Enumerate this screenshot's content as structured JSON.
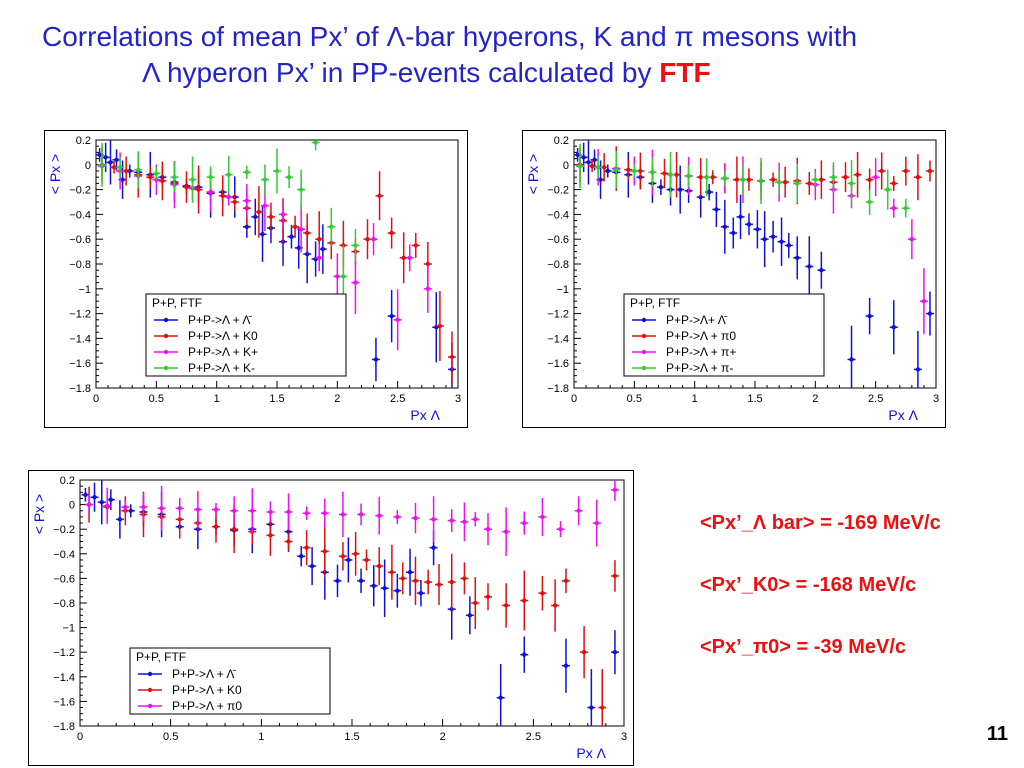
{
  "title": {
    "line1": "Correlations of mean Px’ of Λ-bar hyperons,  K  and π mesons with",
    "line2_prefix": "Λ  hyperon Px’ in PP-events calculated by ",
    "line2_highlight": "FTF"
  },
  "results": [
    "<Px’_Λ bar> = -169 MeV/c",
    "<Px’_K0> = -168 MeV/c",
    "<Px’_π0> = -39 MeV/c"
  ],
  "page_number": "11",
  "colors": {
    "blue": "#1010dd",
    "red": "#e01010",
    "magenta": "#ee10ee",
    "green": "#33cc33",
    "title": "#2323c8"
  },
  "chart_data": [
    {
      "type": "scatter",
      "xlabel": "Px  Λ",
      "ylabel": "< Px >",
      "xlim": [
        0,
        3
      ],
      "ylim": [
        -1.8,
        0.2
      ],
      "xticks": [
        "0",
        "0.5",
        "1",
        "1.5",
        "2",
        "2.5",
        "3"
      ],
      "yticks": [
        "0.2",
        "0",
        "−0.2",
        "−0.4",
        "−0.6",
        "−0.8",
        "−1",
        "−1.2",
        "−1.4",
        "−1.6",
        "−1.8"
      ],
      "legend_header": "P+P, FTF",
      "legend_position": "lower-left",
      "series": [
        {
          "name": "P+P->Λ + Λ̄",
          "color": "blue",
          "x": [
            0.03,
            0.08,
            0.12,
            0.17,
            0.22,
            0.28,
            0.35,
            0.45,
            0.55,
            0.65,
            0.75,
            0.85,
            0.95,
            1.05,
            1.15,
            1.25,
            1.32,
            1.38,
            1.45,
            1.55,
            1.62,
            1.68,
            1.75,
            1.82,
            1.88,
            2.32,
            2.45,
            2.82,
            2.95
          ],
          "y": [
            0.08,
            0.06,
            0.02,
            0.04,
            -0.12,
            -0.05,
            -0.06,
            -0.08,
            -0.1,
            -0.14,
            -0.17,
            -0.18,
            -0.23,
            -0.22,
            -0.26,
            -0.5,
            -0.42,
            -0.56,
            -0.51,
            -0.62,
            -0.58,
            -0.67,
            -0.72,
            -0.76,
            -0.68,
            -1.57,
            -1.22,
            -1.31,
            -1.65
          ]
        },
        {
          "name": "P+P->Λ + K0",
          "color": "red",
          "x": [
            0.05,
            0.15,
            0.25,
            0.35,
            0.45,
            0.55,
            0.65,
            0.75,
            0.85,
            0.95,
            1.05,
            1.15,
            1.25,
            1.35,
            1.45,
            1.55,
            1.65,
            1.75,
            1.85,
            1.95,
            2.05,
            2.15,
            2.25,
            2.35,
            2.45,
            2.55,
            2.65,
            2.75,
            2.85,
            2.95
          ],
          "y": [
            0.0,
            -0.02,
            -0.05,
            -0.08,
            -0.1,
            -0.13,
            -0.15,
            -0.18,
            -0.2,
            -0.22,
            -0.25,
            -0.3,
            -0.35,
            -0.38,
            -0.42,
            -0.45,
            -0.5,
            -0.55,
            -0.6,
            -0.63,
            -0.65,
            -0.7,
            -0.6,
            -0.25,
            -0.55,
            -0.75,
            -0.65,
            -0.8,
            -1.3,
            -1.55
          ]
        },
        {
          "name": "P+P->Λ + K+",
          "color": "magenta",
          "x": [
            0.05,
            0.2,
            0.35,
            0.5,
            0.65,
            0.8,
            0.95,
            1.1,
            1.25,
            1.4,
            1.55,
            1.7,
            1.85,
            2.0,
            2.15,
            2.3,
            2.5,
            2.6,
            2.75,
            2.9
          ],
          "y": [
            -0.01,
            -0.05,
            -0.09,
            -0.12,
            -0.16,
            -0.19,
            -0.22,
            -0.26,
            -0.29,
            -0.33,
            -0.4,
            -0.52,
            -0.75,
            -0.9,
            -0.95,
            -0.6,
            -1.25,
            -0.75,
            -1.0,
            -1.82
          ]
        },
        {
          "name": "P+P->Λ + K-",
          "color": "green",
          "x": [
            0.05,
            0.2,
            0.35,
            0.5,
            0.65,
            0.8,
            0.95,
            1.1,
            1.25,
            1.4,
            1.5,
            1.6,
            1.7,
            1.82,
            1.95,
            2.05,
            2.15
          ],
          "y": [
            0.0,
            -0.02,
            -0.04,
            -0.07,
            -0.1,
            -0.12,
            -0.1,
            -0.08,
            -0.06,
            -0.12,
            -0.05,
            -0.1,
            -0.2,
            0.18,
            -0.5,
            -0.9,
            -0.65
          ]
        }
      ]
    },
    {
      "type": "scatter",
      "xlabel": "Px  Λ",
      "ylabel": "< Px >",
      "xlim": [
        0,
        3
      ],
      "ylim": [
        -1.8,
        0.2
      ],
      "xticks": [
        "0",
        "0.5",
        "1",
        "1.5",
        "2",
        "2.5",
        "3"
      ],
      "yticks": [
        "0.2",
        "0",
        "−0.2",
        "−0.4",
        "−0.6",
        "−0.8",
        "−1",
        "−1.2",
        "−1.4",
        "−1.6",
        "−1.8"
      ],
      "legend_header": "P+P, FTF",
      "legend_position": "lower-left",
      "series": [
        {
          "name": "P+P->Λ+ Λ̄",
          "color": "blue",
          "x": [
            0.03,
            0.08,
            0.12,
            0.17,
            0.22,
            0.28,
            0.35,
            0.45,
            0.55,
            0.65,
            0.72,
            0.8,
            0.88,
            0.95,
            1.05,
            1.12,
            1.18,
            1.25,
            1.32,
            1.38,
            1.45,
            1.52,
            1.58,
            1.65,
            1.72,
            1.78,
            1.85,
            1.95,
            2.05,
            2.3,
            2.45,
            2.65,
            2.85,
            2.95
          ],
          "y": [
            0.08,
            0.06,
            0.02,
            0.04,
            -0.12,
            -0.05,
            -0.06,
            -0.08,
            -0.1,
            -0.15,
            -0.18,
            -0.2,
            -0.2,
            -0.21,
            -0.26,
            -0.22,
            -0.36,
            -0.5,
            -0.55,
            -0.42,
            -0.48,
            -0.52,
            -0.6,
            -0.58,
            -0.62,
            -0.65,
            -0.75,
            -0.82,
            -0.85,
            -1.57,
            -1.22,
            -1.31,
            -1.65,
            -1.2
          ]
        },
        {
          "name": "P+P->Λ + π0",
          "color": "red",
          "x": [
            0.05,
            0.15,
            0.25,
            0.35,
            0.45,
            0.55,
            0.65,
            0.75,
            0.85,
            0.95,
            1.05,
            1.15,
            1.25,
            1.35,
            1.45,
            1.55,
            1.65,
            1.75,
            1.85,
            1.95,
            2.05,
            2.15,
            2.25,
            2.35,
            2.45,
            2.55,
            2.65,
            2.75,
            2.85,
            2.95
          ],
          "y": [
            0.0,
            -0.01,
            -0.02,
            -0.03,
            -0.04,
            -0.05,
            -0.06,
            -0.07,
            -0.08,
            -0.09,
            -0.1,
            -0.1,
            -0.11,
            -0.12,
            -0.12,
            -0.13,
            -0.12,
            -0.14,
            -0.13,
            -0.15,
            -0.12,
            -0.14,
            -0.1,
            -0.08,
            -0.12,
            -0.05,
            -0.15,
            -0.05,
            -0.1,
            -0.05
          ]
        },
        {
          "name": "P+P->Λ + π+",
          "color": "magenta",
          "x": [
            0.05,
            0.2,
            0.35,
            0.5,
            0.65,
            0.8,
            0.95,
            1.1,
            1.25,
            1.4,
            1.55,
            1.7,
            1.85,
            2.0,
            2.15,
            2.3,
            2.5,
            2.65,
            2.8,
            2.9
          ],
          "y": [
            -0.01,
            -0.02,
            -0.03,
            -0.05,
            -0.06,
            -0.08,
            -0.09,
            -0.1,
            -0.11,
            -0.12,
            -0.13,
            -0.14,
            -0.15,
            -0.16,
            -0.2,
            -0.25,
            -0.1,
            -0.35,
            -0.6,
            -1.1
          ]
        },
        {
          "name": "P+P->Λ + π-",
          "color": "green",
          "x": [
            0.05,
            0.2,
            0.35,
            0.5,
            0.65,
            0.8,
            0.95,
            1.1,
            1.25,
            1.4,
            1.55,
            1.7,
            1.85,
            2.0,
            2.15,
            2.3,
            2.45,
            2.6,
            2.75
          ],
          "y": [
            -0.01,
            -0.02,
            -0.04,
            -0.05,
            -0.06,
            -0.08,
            -0.09,
            -0.1,
            -0.11,
            -0.12,
            -0.13,
            -0.14,
            -0.15,
            -0.12,
            -0.1,
            -0.15,
            -0.3,
            -0.2,
            -0.35
          ]
        }
      ]
    },
    {
      "type": "scatter",
      "xlabel": "Px  Λ",
      "ylabel": "< Px >",
      "xlim": [
        0,
        3
      ],
      "ylim": [
        -1.8,
        0.2
      ],
      "xticks": [
        "0",
        "0.5",
        "1",
        "1.5",
        "2",
        "2.5",
        "3"
      ],
      "yticks": [
        "0.2",
        "0",
        "−0.2",
        "−0.4",
        "−0.6",
        "−0.8",
        "−1",
        "−1.2",
        "−1.4",
        "−1.6",
        "−1.8"
      ],
      "legend_header": "P+P,  FTF",
      "legend_position": "lower-left",
      "series": [
        {
          "name": "P+P->Λ + Λ̄",
          "color": "blue",
          "x": [
            0.03,
            0.08,
            0.12,
            0.17,
            0.22,
            0.28,
            0.35,
            0.45,
            0.55,
            0.65,
            0.75,
            0.85,
            0.95,
            1.05,
            1.15,
            1.22,
            1.28,
            1.35,
            1.42,
            1.48,
            1.55,
            1.62,
            1.68,
            1.75,
            1.82,
            1.88,
            1.95,
            2.05,
            2.15,
            2.32,
            2.45,
            2.68,
            2.82,
            2.95
          ],
          "y": [
            0.08,
            0.06,
            0.02,
            0.04,
            -0.12,
            -0.05,
            -0.06,
            -0.08,
            -0.18,
            -0.2,
            -0.18,
            -0.21,
            -0.2,
            -0.16,
            -0.22,
            -0.42,
            -0.5,
            -0.55,
            -0.62,
            -0.45,
            -0.62,
            -0.66,
            -0.68,
            -0.7,
            -0.55,
            -0.72,
            -0.35,
            -0.85,
            -0.9,
            -1.57,
            -1.22,
            -1.31,
            -1.65,
            -1.2
          ]
        },
        {
          "name": "P+P->Λ + K0",
          "color": "red",
          "x": [
            0.05,
            0.15,
            0.25,
            0.35,
            0.45,
            0.55,
            0.65,
            0.75,
            0.85,
            0.95,
            1.05,
            1.15,
            1.25,
            1.35,
            1.45,
            1.52,
            1.58,
            1.65,
            1.72,
            1.78,
            1.85,
            1.92,
            1.98,
            2.05,
            2.12,
            2.18,
            2.25,
            2.35,
            2.45,
            2.55,
            2.62,
            2.68,
            2.78,
            2.88,
            2.95
          ],
          "y": [
            0.0,
            -0.02,
            -0.05,
            -0.08,
            -0.1,
            -0.12,
            -0.15,
            -0.18,
            -0.2,
            -0.22,
            -0.25,
            -0.3,
            -0.35,
            -0.38,
            -0.42,
            -0.4,
            -0.45,
            -0.5,
            -0.55,
            -0.6,
            -0.62,
            -0.63,
            -0.65,
            -0.63,
            -0.6,
            -0.8,
            -0.75,
            -0.82,
            -0.78,
            -0.72,
            -0.82,
            -0.62,
            -1.2,
            -1.65,
            -0.58
          ]
        },
        {
          "name": "P+P->Λ + π0",
          "color": "magenta",
          "x": [
            0.05,
            0.15,
            0.25,
            0.35,
            0.45,
            0.55,
            0.65,
            0.75,
            0.85,
            0.95,
            1.05,
            1.15,
            1.25,
            1.35,
            1.45,
            1.55,
            1.65,
            1.75,
            1.85,
            1.95,
            2.05,
            2.12,
            2.18,
            2.25,
            2.35,
            2.45,
            2.55,
            2.65,
            2.75,
            2.85,
            2.95
          ],
          "y": [
            0.0,
            -0.01,
            -0.02,
            -0.02,
            -0.03,
            -0.03,
            -0.04,
            -0.04,
            -0.05,
            -0.05,
            -0.06,
            -0.06,
            -0.07,
            -0.07,
            -0.08,
            -0.08,
            -0.09,
            -0.1,
            -0.11,
            -0.12,
            -0.13,
            -0.14,
            -0.12,
            -0.2,
            -0.22,
            -0.15,
            -0.1,
            -0.2,
            -0.05,
            -0.15,
            0.12
          ]
        }
      ]
    }
  ]
}
